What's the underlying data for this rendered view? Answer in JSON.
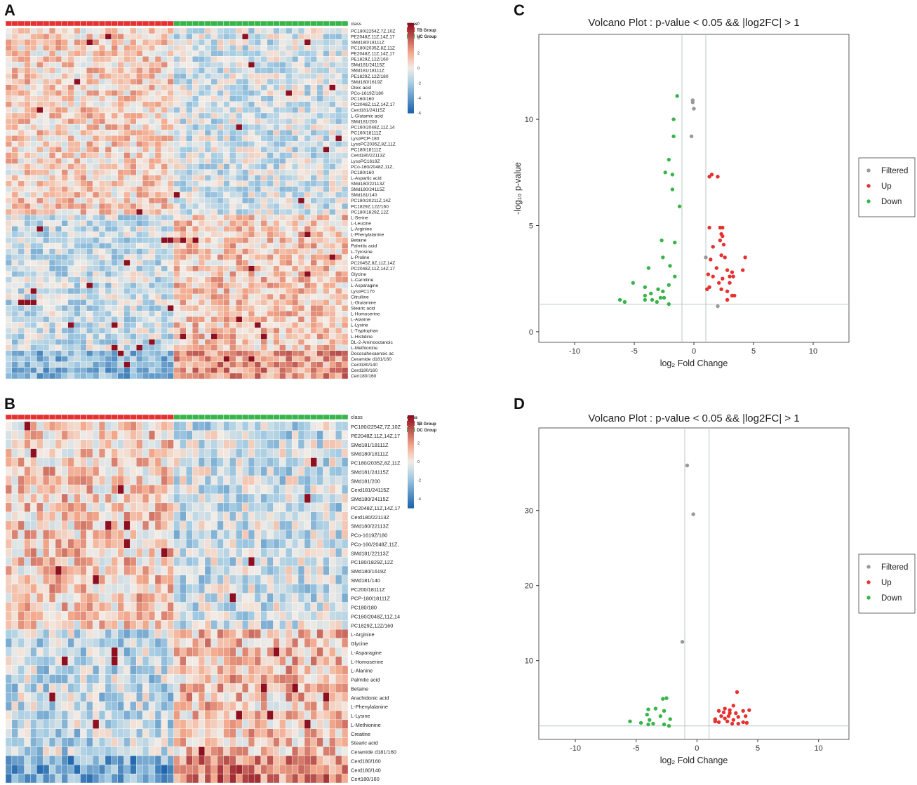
{
  "panels": {
    "a": "A",
    "b": "B",
    "c": "C",
    "d": "D"
  },
  "chart_data": [
    {
      "panel": "A",
      "type": "heatmap",
      "title": "",
      "annotation_label": "class",
      "groups": [
        {
          "name": "TB Group",
          "color": "#e5312f",
          "columns": 27
        },
        {
          "name": "HC Group",
          "color": "#38b54a",
          "columns": 28
        }
      ],
      "colorbar_ticks": [
        6,
        4,
        2,
        0,
        -2,
        -4,
        -6
      ],
      "color_range": [
        -6,
        6
      ],
      "rows": [
        "PC180/2254Z,7Z,10Z",
        "PE2048Z,11Z,14Z,17",
        "SMd180/18111Z",
        "PC180/2035Z,8Z,11Z",
        "PE2048Z,11Z,14Z,17",
        "PE1829Z,12Z/160",
        "SMd181/24115Z",
        "SMd181/18111Z",
        "PE1829Z,12Z/180",
        "SMd180/1619Z",
        "Oleic acid",
        "PCo-1619Z/180",
        "PC160/160",
        "PC2048Z,11Z,14Z,17",
        "Cerd181/24115Z",
        "L-Glutamic acid",
        "SMd181/200",
        "PC160/2048Z,11Z,14",
        "PC160/18111Z",
        "LysoPCP-180",
        "LysoPC2035Z,8Z,11Z",
        "PC180/18111Z",
        "Cerd180/22113Z",
        "LysoPC1619Z",
        "PCo-160/2048Z,11Z,",
        "PC180/160",
        "L-Aspartic acid",
        "SMd180/22113Z",
        "SMd180/24115Z",
        "SMd181/140",
        "PC180/20211Z,14Z",
        "PC1829Z,12Z/160",
        "PC180/1829Z,12Z",
        "L-Serine",
        "L-Leucine",
        "L-Arginine",
        "L-Phenylalanine",
        "Betaine",
        "Palmitic acid",
        "L-Tyrosine",
        "L-Proline",
        "PC2045Z,8Z,11Z,14Z",
        "PC2048Z,11Z,14Z,17",
        "Glycine",
        "L-Carnitine",
        "L-Asparagine",
        "LysoPC170",
        "Citrulline",
        "L-Glutamine",
        "Stearic acid",
        "L-Homoserine",
        "L-Alanine",
        "L-Lysine",
        "L-Tryptophan",
        "L-Histidine",
        "DL-2-Aminooctanoic",
        "L-Methionine",
        "Docosahexaenoic ac",
        "Ceramide d181/160",
        "Cerd180/140",
        "Cerd180/160",
        "Cert180/160"
      ]
    },
    {
      "panel": "B",
      "type": "heatmap",
      "title": "",
      "annotation_label": "class",
      "groups": [
        {
          "name": "TB Group",
          "color": "#e5312f",
          "columns": 27
        },
        {
          "name": "DC Group",
          "color": "#38b54a",
          "columns": 28
        }
      ],
      "colorbar_ticks": [
        4,
        2,
        0,
        -2,
        -4
      ],
      "color_range": [
        -5,
        5
      ],
      "rows": [
        "PC180/2254Z,7Z,10Z",
        "PE2048Z,11Z,14Z,17",
        "SMd181/18111Z",
        "SMd180/18111Z",
        "PC180/2035Z,8Z,11Z",
        "SMd181/24115Z",
        "SMd181/200",
        "Cerd181/24115Z",
        "SMd180/24115Z",
        "PC2048Z,11Z,14Z,17",
        "Cerd180/22113Z",
        "SMd180/22113Z",
        "PCo-1619Z/180",
        "PCo-160/2048Z,11Z,",
        "SMd181/22113Z",
        "PC180/1829Z,12Z",
        "SMd180/1619Z",
        "SMd181/140",
        "PC200/18111Z",
        "PCP-180/18111Z",
        "PC180/180",
        "PC160/2048Z,11Z,14",
        "PC1829Z,12Z/160",
        "L-Arginine",
        "Glycine",
        "L-Asparagine",
        "L-Homoserine",
        "L-Alanine",
        "Palmitic acid",
        "Betaine",
        "Arachidonic acid",
        "L-Phenylalanine",
        "L-Lysine",
        "L-Methionine",
        "Creatine",
        "Stearic acid",
        "Ceramide d181/160",
        "Cerd180/160",
        "Cerd180/140",
        "Cert180/160"
      ]
    },
    {
      "panel": "C",
      "type": "scatter",
      "title": "Volcano Plot : p-value < 0.05 && |log2FC| > 1",
      "xlabel": "log₂ Fold Change",
      "ylabel": "-log₁₀ p-value",
      "xlim": [
        -13,
        13
      ],
      "ylim": [
        -0.5,
        14
      ],
      "x_ticks": [
        -10,
        -5,
        0,
        5,
        10
      ],
      "y_ticks": [
        0,
        5,
        10
      ],
      "y_tick_labels": [
        "0",
        "5",
        "10"
      ],
      "vlines": [
        -1,
        1
      ],
      "hline": 1.3,
      "legend": [
        "Filtered",
        "Up",
        "Down"
      ],
      "series": [
        {
          "name": "Filtered",
          "color": "#999999",
          "points": [
            [
              -0.1,
              10.9
            ],
            [
              -0.1,
              10.8
            ],
            [
              0.0,
              10.5
            ],
            [
              -0.2,
              9.2
            ],
            [
              1.0,
              3.5
            ],
            [
              2.0,
              1.2
            ]
          ]
        },
        {
          "name": "Up",
          "color": "#e5312f",
          "points": [
            [
              1.3,
              7.3
            ],
            [
              1.5,
              7.4
            ],
            [
              2.0,
              7.3
            ],
            [
              1.3,
              4.9
            ],
            [
              2.2,
              4.9
            ],
            [
              2.4,
              4.9
            ],
            [
              2.3,
              4.6
            ],
            [
              2.4,
              4.5
            ],
            [
              2.2,
              4.3
            ],
            [
              2.5,
              4.1
            ],
            [
              1.6,
              4.0
            ],
            [
              2.3,
              3.6
            ],
            [
              2.6,
              3.5
            ],
            [
              1.4,
              3.4
            ],
            [
              1.9,
              3.0
            ],
            [
              2.8,
              2.9
            ],
            [
              3.2,
              2.8
            ],
            [
              4.3,
              3.5
            ],
            [
              1.2,
              2.7
            ],
            [
              1.6,
              2.6
            ],
            [
              2.4,
              2.5
            ],
            [
              3.0,
              2.6
            ],
            [
              3.3,
              2.6
            ],
            [
              4.1,
              2.9
            ],
            [
              2.1,
              2.3
            ],
            [
              3.0,
              2.3
            ],
            [
              2.3,
              2.0
            ],
            [
              1.1,
              2.0
            ],
            [
              1.3,
              2.1
            ],
            [
              2.8,
              1.9
            ],
            [
              3.2,
              1.7
            ],
            [
              3.4,
              1.7
            ],
            [
              2.8,
              1.5
            ]
          ]
        },
        {
          "name": "Down",
          "color": "#38b54a",
          "points": [
            [
              -1.4,
              11.1
            ],
            [
              -1.7,
              10.0
            ],
            [
              -1.7,
              9.2
            ],
            [
              -2.1,
              8.1
            ],
            [
              -2.4,
              7.5
            ],
            [
              -1.8,
              7.4
            ],
            [
              -1.8,
              6.7
            ],
            [
              -1.2,
              5.9
            ],
            [
              -2.7,
              4.3
            ],
            [
              -1.6,
              4.2
            ],
            [
              -2.6,
              3.5
            ],
            [
              -3.8,
              3.0
            ],
            [
              -2.0,
              3.1
            ],
            [
              -1.6,
              2.6
            ],
            [
              -5.1,
              2.3
            ],
            [
              -4.1,
              2.1
            ],
            [
              -2.1,
              2.2
            ],
            [
              -3.0,
              2.0
            ],
            [
              -2.6,
              1.9
            ],
            [
              -3.6,
              1.8
            ],
            [
              -4.1,
              1.7
            ],
            [
              -2.8,
              1.6
            ],
            [
              -3.5,
              1.5
            ],
            [
              -2.5,
              1.6
            ],
            [
              -4.1,
              1.5
            ],
            [
              -6.2,
              1.5
            ],
            [
              -5.8,
              1.4
            ],
            [
              -3.1,
              1.4
            ],
            [
              -2.1,
              1.3
            ]
          ]
        }
      ]
    },
    {
      "panel": "D",
      "type": "scatter",
      "title": "Volcano Plot : p-value < 0.05 && |log2FC| > 1",
      "xlabel": "log₂ Fold Change",
      "ylabel": "",
      "xlim": [
        -13,
        12.5
      ],
      "ylim": [
        -0.5,
        41
      ],
      "x_ticks": [
        -10,
        -5,
        0,
        5,
        10
      ],
      "y_ticks": [
        10,
        20,
        30
      ],
      "y_tick_labels": [
        "10",
        "20",
        "30"
      ],
      "vlines": [
        -1,
        1
      ],
      "hline": 1.3,
      "legend": [
        "Filtered",
        "Up",
        "Down"
      ],
      "series": [
        {
          "name": "Filtered",
          "color": "#999999",
          "points": [
            [
              -0.8,
              36.0
            ],
            [
              -0.3,
              29.5
            ],
            [
              -1.2,
              12.5
            ]
          ]
        },
        {
          "name": "Up",
          "color": "#e5312f",
          "points": [
            [
              3.3,
              5.8
            ],
            [
              3.0,
              4.0
            ],
            [
              2.3,
              3.6
            ],
            [
              2.7,
              3.4
            ],
            [
              3.8,
              3.3
            ],
            [
              4.3,
              3.4
            ],
            [
              1.8,
              3.3
            ],
            [
              2.2,
              3.1
            ],
            [
              2.7,
              3.0
            ],
            [
              3.2,
              3.0
            ],
            [
              2.0,
              2.6
            ],
            [
              2.6,
              2.6
            ],
            [
              3.4,
              2.5
            ],
            [
              4.0,
              2.6
            ],
            [
              1.5,
              2.2
            ],
            [
              2.3,
              2.3
            ],
            [
              3.0,
              2.1
            ],
            [
              1.8,
              1.8
            ],
            [
              2.5,
              1.9
            ],
            [
              3.4,
              1.6
            ],
            [
              3.8,
              1.8
            ],
            [
              4.1,
              1.7
            ],
            [
              2.9,
              1.6
            ],
            [
              1.5,
              1.9
            ]
          ]
        },
        {
          "name": "Down",
          "color": "#38b54a",
          "points": [
            [
              -2.5,
              5.0
            ],
            [
              -2.8,
              4.9
            ],
            [
              -4.0,
              3.5
            ],
            [
              -3.4,
              3.6
            ],
            [
              -2.7,
              3.3
            ],
            [
              -4.1,
              2.8
            ],
            [
              -3.0,
              2.6
            ],
            [
              -2.2,
              2.2
            ],
            [
              -3.9,
              2.1
            ],
            [
              -5.5,
              1.9
            ],
            [
              -4.6,
              1.7
            ],
            [
              -3.6,
              1.6
            ],
            [
              -4.0,
              1.5
            ],
            [
              -2.7,
              1.5
            ],
            [
              -2.3,
              1.3
            ]
          ]
        }
      ]
    }
  ]
}
